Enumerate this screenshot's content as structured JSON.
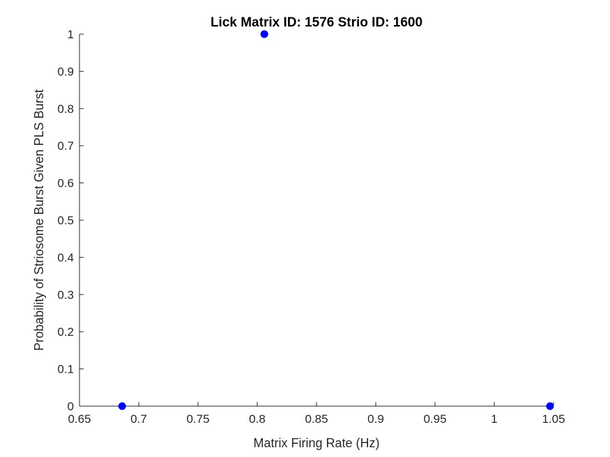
{
  "chart_data": {
    "type": "scatter",
    "title": "Lick Matrix ID: 1576 Strio ID: 1600",
    "xlabel": "Matrix Firing Rate (Hz)",
    "ylabel": "Probability of Striosome Burst Given PLS Burst",
    "xlim": [
      0.65,
      1.05
    ],
    "ylim": [
      0,
      1
    ],
    "x_ticks": [
      0.65,
      0.7,
      0.75,
      0.8,
      0.85,
      0.9,
      0.95,
      1,
      1.05
    ],
    "x_tick_labels": [
      "0.65",
      "0.7",
      "0.75",
      "0.8",
      "0.85",
      "0.9",
      "0.95",
      "1",
      "1.05"
    ],
    "y_ticks": [
      0,
      0.1,
      0.2,
      0.3,
      0.4,
      0.5,
      0.6,
      0.7,
      0.8,
      0.9,
      1
    ],
    "y_tick_labels": [
      "0",
      "0.1",
      "0.2",
      "0.3",
      "0.4",
      "0.5",
      "0.6",
      "0.7",
      "0.8",
      "0.9",
      "1"
    ],
    "grid": false,
    "marker_color": "#0000ff",
    "axis_color": "#262626",
    "points": [
      {
        "x": 0.686,
        "y": 0
      },
      {
        "x": 0.806,
        "y": 1
      },
      {
        "x": 1.047,
        "y": 0
      }
    ]
  }
}
